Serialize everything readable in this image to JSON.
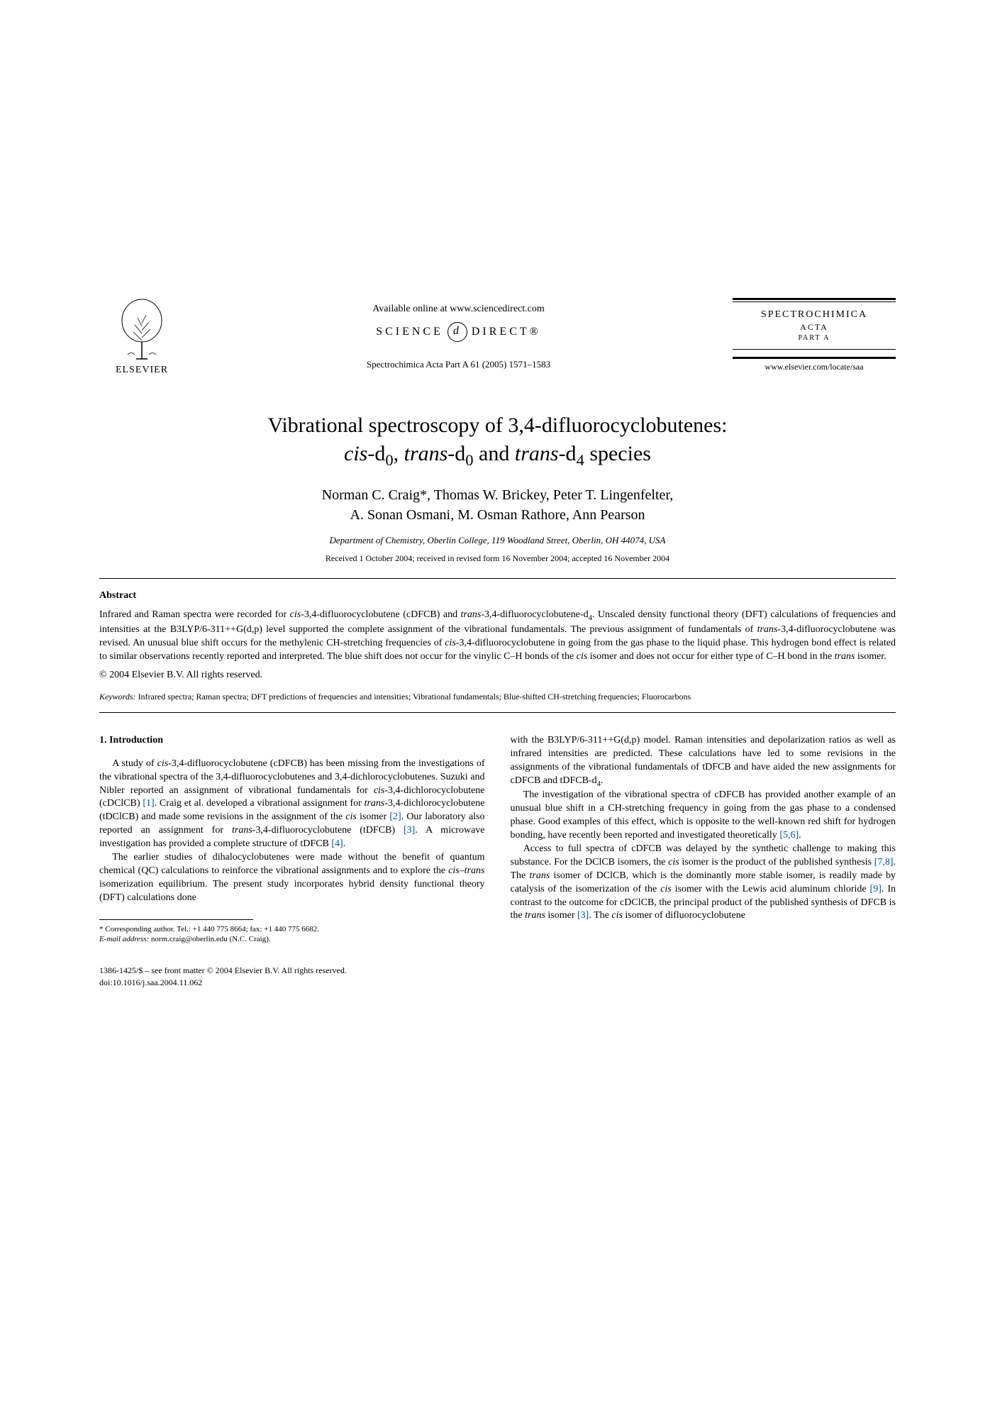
{
  "header": {
    "elsevier_label": "ELSEVIER",
    "available_online": "Available online at www.sciencedirect.com",
    "sciencedirect_left": "SCIENCE",
    "sciencedirect_right": "DIRECT®",
    "journal_ref": "Spectrochimica Acta Part A 61 (2005) 1571–1583",
    "journal_box_title": "SPECTROCHIMICA",
    "journal_box_sub": "ACTA",
    "journal_box_part": "PART A",
    "journal_url": "www.elsevier.com/locate/saa"
  },
  "title": {
    "line1": "Vibrational spectroscopy of 3,4-difluorocyclobutenes:",
    "line2_html": "<span class='ital'>cis</span>-d<sub>0</sub>, <span class='ital'>trans</span>-d<sub>0</sub> and <span class='ital'>trans</span>-d<sub>4</sub> species"
  },
  "authors": {
    "line1": "Norman C. Craig*, Thomas W. Brickey, Peter T. Lingenfelter,",
    "line2": "A. Sonan Osmani, M. Osman Rathore, Ann Pearson"
  },
  "affiliation": "Department of Chemistry, Oberlin College, 119 Woodland Street, Oberlin, OH 44074, USA",
  "dates": "Received 1 October 2004; received in revised form 16 November 2004; accepted 16 November 2004",
  "abstract": {
    "heading": "Abstract",
    "text_html": "Infrared and Raman spectra were recorded for <span class='ital'>cis</span>-3,4-difluorocyclobutene (cDFCB) and <span class='ital'>trans</span>-3,4-difluorocyclobutene-d<sub>4</sub>. Unscaled density functional theory (DFT) calculations of frequencies and intensities at the B3LYP/6-311++G(d,p) level supported the complete assignment of the vibrational fundamentals. The previous assignment of fundamentals of <span class='ital'>trans</span>-3,4-difluorocyclobutene was revised. An unusual blue shift occurs for the methylenic CH-stretching frequencies of <span class='ital'>cis</span>-3,4-difluorocyclobutene in going from the gas phase to the liquid phase. This hydrogen bond effect is related to similar observations recently reported and interpreted. The blue shift does not occur for the vinylic C–H bonds of the <span class='ital'>cis</span> isomer and does not occur for either type of C–H bond in the <span class='ital'>trans</span> isomer.",
    "copyright": "© 2004 Elsevier B.V. All rights reserved."
  },
  "keywords": {
    "label": "Keywords:",
    "text": " Infrared spectra; Raman spectra; DFT predictions of frequencies and intensities; Vibrational fundamentals; Blue-shifted CH-stretching frequencies; Fluorocarbons"
  },
  "body": {
    "section_heading": "1. Introduction",
    "col1_p1_html": "A study of <span class='ital'>cis</span>-3,4-difluorocyclobutene (cDFCB) has been missing from the investigations of the vibrational spectra of the 3,4-difluorocyclobutenes and 3,4-dichlorocyclobutenes. Suzuki and Nibler reported an assignment of vibrational fundamentals for <span class='ital'>cis</span>-3,4-dichlorocyclobutene (cDClCB) <span class='ref-link'>[1]</span>. Craig et al. developed a vibrational assignment for <span class='ital'>trans</span>-3,4-dichlorocyclobutene (tDClCB) and made some revisions in the assignment of the <span class='ital'>cis</span> isomer <span class='ref-link'>[2]</span>. Our laboratory also reported an assignment for <span class='ital'>trans</span>-3,4-difluorocyclobutene (tDFCB) <span class='ref-link'>[3]</span>. A microwave investigation has provided a complete structure of tDFCB <span class='ref-link'>[4]</span>.",
    "col1_p2_html": "The earlier studies of dihalocyclobutenes were made without the benefit of quantum chemical (QC) calculations to reinforce the vibrational assignments and to explore the <span class='ital'>cis–trans</span> isomerization equilibrium. The present study incorporates hybrid density functional theory (DFT) calculations done",
    "col2_p1_html": "with the B3LYP/6-311++G(d,p) model. Raman intensities and depolarization ratios as well as infrared intensities are predicted. These calculations have led to some revisions in the assignments of the vibrational fundamentals of tDFCB and have aided the new assignments for cDFCB and tDFCB-d<sub>4</sub>.",
    "col2_p2_html": "The investigation of the vibrational spectra of cDFCB has provided another example of an unusual blue shift in a CH-stretching frequency in going from the gas phase to a condensed phase. Good examples of this effect, which is opposite to the well-known red shift for hydrogen bonding, have recently been reported and investigated theoretically <span class='ref-link'>[5,6]</span>.",
    "col2_p3_html": "Access to full spectra of cDFCB was delayed by the synthetic challenge to making this substance. For the DClCB isomers, the <span class='ital'>cis</span> isomer is the product of the published synthesis <span class='ref-link'>[7,8]</span>. The <span class='ital'>trans</span> isomer of DClCB, which is the dominantly more stable isomer, is readily made by catalysis of the isomerization of the <span class='ital'>cis</span> isomer with the Lewis acid aluminum chloride <span class='ref-link'>[9]</span>. In contrast to the outcome for cDClCB, the principal product of the published synthesis of DFCB is the <span class='ital'>trans</span> isomer <span class='ref-link'>[3]</span>. The <span class='ital'>cis</span> isomer of difluorocyclobutene"
  },
  "footnote": {
    "line1": "* Corresponding author. Tel.: +1 440 775 8664; fax: +1 440 775 6682.",
    "email_label": "E-mail address:",
    "email": " norm.craig@oberlin.edu (N.C. Craig)."
  },
  "footer": {
    "line1": "1386-1425/$ – see front matter © 2004 Elsevier B.V. All rights reserved.",
    "line2": "doi:10.1016/j.saa.2004.11.062"
  }
}
